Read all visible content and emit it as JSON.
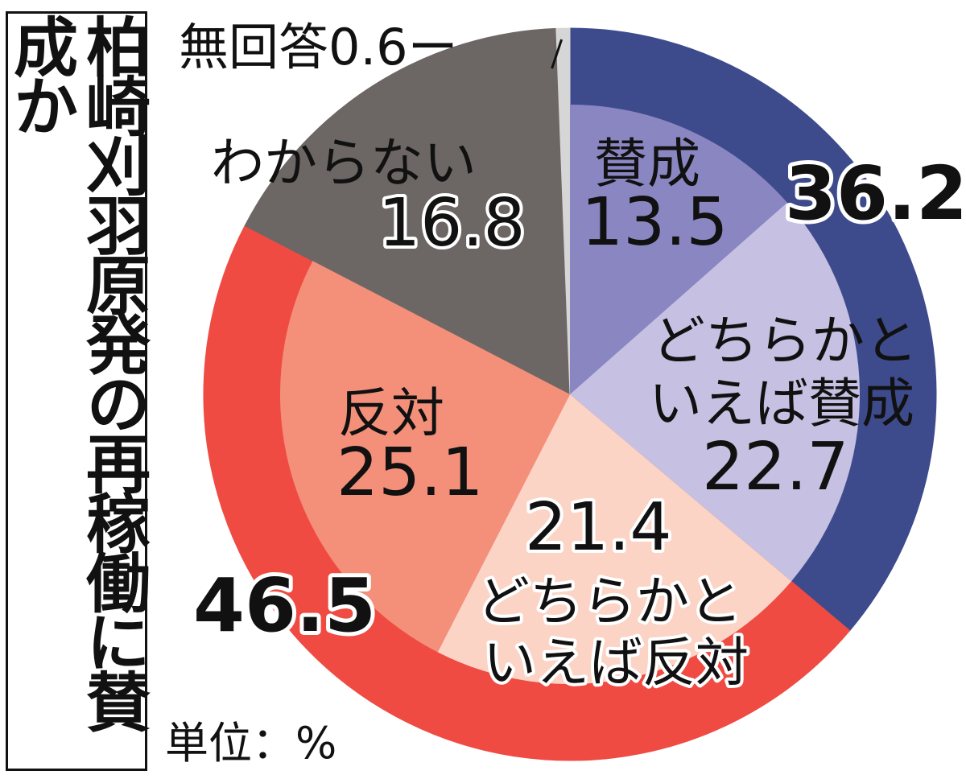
{
  "title": "柏崎刈羽原発の再稼働に賛成か",
  "unit_label": "単位：%",
  "colors": {
    "agree_outer": "#3d4b8c",
    "agree": "#8a86c2",
    "somewhat_agree": "#c6c1e2",
    "somewhat_oppose": "#fbd4c6",
    "oppose": "#f4907a",
    "oppose_outer": "#ef4b43",
    "dont_know": "#6c6764",
    "no_answer": "#d6d6d6"
  },
  "chart_data": {
    "type": "pie",
    "title": "柏崎刈羽原発の再稼働に賛成か",
    "unit": "単位：%",
    "slices": [
      {
        "label": "賛成",
        "value": 13.5,
        "color": "#8a86c2"
      },
      {
        "label": "どちらかといえば賛成",
        "value": 22.7,
        "color": "#c6c1e2"
      },
      {
        "label": "どちらかといえば反対",
        "value": 21.4,
        "color": "#fbd4c6"
      },
      {
        "label": "反対",
        "value": 25.1,
        "color": "#f4907a"
      },
      {
        "label": "わからない",
        "value": 16.8,
        "color": "#6c6764"
      },
      {
        "label": "無回答",
        "value": 0.6,
        "color": "#d6d6d6"
      }
    ],
    "group_totals": [
      {
        "label": "36.2",
        "value": 36.2,
        "members": [
          "賛成",
          "どちらかといえば賛成"
        ],
        "color": "#3d4b8c"
      },
      {
        "label": "46.5",
        "value": 46.5,
        "members": [
          "どちらかといえば反対",
          "反対"
        ],
        "color": "#ef4b43"
      }
    ],
    "slice_labels": {
      "agree": {
        "name": "賛成",
        "value": "13.5"
      },
      "somewhat_agree": {
        "name_line1": "どちらかと",
        "name_line2": "いえば賛成",
        "value": "22.7"
      },
      "somewhat_oppose": {
        "value": "21.4",
        "name_line1": "どちらかと",
        "name_line2": "いえば反対"
      },
      "oppose": {
        "name": "反対",
        "value": "25.1"
      },
      "dont_know": {
        "name": "わからない",
        "value": "16.8"
      },
      "no_answer": {
        "text": "無回答0.6ー"
      }
    },
    "totals_text": {
      "agree_total": "36.2",
      "oppose_total": "46.5"
    }
  }
}
